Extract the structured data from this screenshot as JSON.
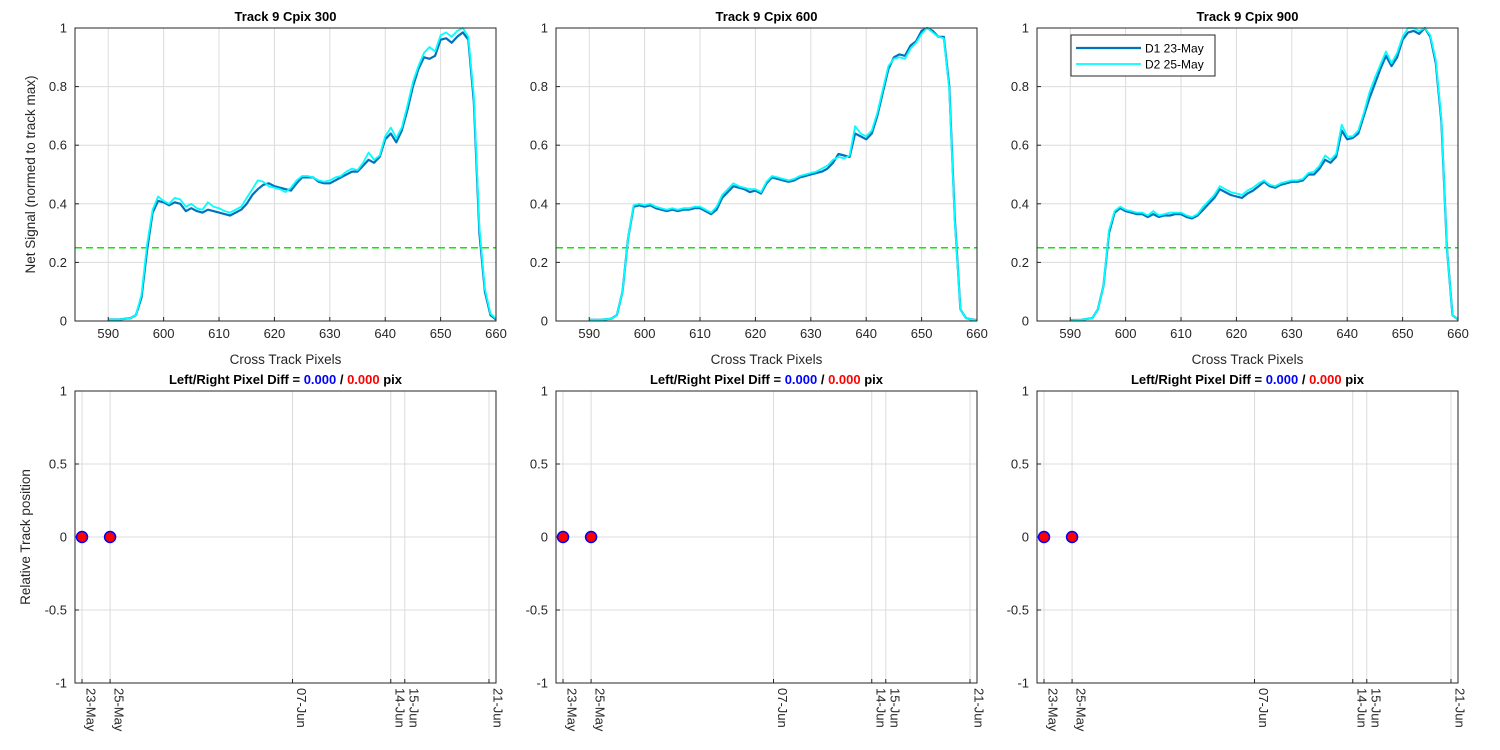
{
  "colors": {
    "d1": "#0072bd",
    "d2": "#00ffff",
    "threshold": "#00ee00",
    "left_value": "#0000ff",
    "right_value": "#ff0000",
    "marker_fill": "#ff0000",
    "marker_edge": "#0000ff"
  },
  "chart_data": [
    {
      "type": "line",
      "title": "Track 9  Cpix 300",
      "xlabel": "Cross Track Pixels",
      "ylabel": "Net Signal (normed to track max)",
      "xlim": [
        584,
        660
      ],
      "ylim": [
        0,
        1
      ],
      "xticks": [
        590,
        600,
        610,
        620,
        630,
        640,
        650,
        660
      ],
      "yticks": [
        0,
        0.2,
        0.4,
        0.6,
        0.8,
        1
      ],
      "ytick_labels": [
        "0",
        "0.2",
        "0.4",
        "0.6",
        "0.8",
        "1"
      ],
      "threshold": 0.25,
      "grid": true,
      "x": [
        590,
        592,
        594,
        595,
        596,
        597,
        598,
        599,
        600,
        601,
        602,
        603,
        604,
        605,
        606,
        607,
        608,
        609,
        610,
        611,
        612,
        613,
        614,
        615,
        616,
        617,
        618,
        619,
        620,
        621,
        622,
        623,
        624,
        625,
        626,
        627,
        628,
        629,
        630,
        631,
        632,
        633,
        634,
        635,
        636,
        637,
        638,
        639,
        640,
        641,
        642,
        643,
        644,
        645,
        646,
        647,
        648,
        649,
        650,
        651,
        652,
        653,
        654,
        655,
        656,
        657,
        658,
        659,
        660
      ],
      "series": [
        {
          "name": "D1 23-May",
          "values": [
            0.005,
            0.005,
            0.01,
            0.02,
            0.08,
            0.24,
            0.37,
            0.41,
            0.405,
            0.395,
            0.405,
            0.4,
            0.375,
            0.385,
            0.375,
            0.37,
            0.38,
            0.375,
            0.37,
            0.365,
            0.36,
            0.37,
            0.38,
            0.4,
            0.43,
            0.45,
            0.465,
            0.47,
            0.46,
            0.455,
            0.45,
            0.445,
            0.47,
            0.49,
            0.49,
            0.49,
            0.475,
            0.47,
            0.47,
            0.48,
            0.49,
            0.5,
            0.51,
            0.51,
            0.53,
            0.55,
            0.54,
            0.56,
            0.62,
            0.64,
            0.61,
            0.65,
            0.72,
            0.8,
            0.86,
            0.9,
            0.895,
            0.905,
            0.96,
            0.965,
            0.95,
            0.97,
            0.985,
            0.96,
            0.75,
            0.3,
            0.1,
            0.02,
            0.005
          ]
        },
        {
          "name": "D2 25-May",
          "values": [
            0.005,
            0.005,
            0.01,
            0.02,
            0.09,
            0.26,
            0.38,
            0.425,
            0.41,
            0.4,
            0.42,
            0.415,
            0.39,
            0.4,
            0.385,
            0.38,
            0.405,
            0.39,
            0.385,
            0.375,
            0.37,
            0.38,
            0.39,
            0.42,
            0.45,
            0.48,
            0.475,
            0.46,
            0.455,
            0.45,
            0.44,
            0.455,
            0.48,
            0.495,
            0.495,
            0.49,
            0.48,
            0.475,
            0.48,
            0.49,
            0.495,
            0.51,
            0.52,
            0.515,
            0.54,
            0.575,
            0.55,
            0.565,
            0.63,
            0.66,
            0.625,
            0.66,
            0.735,
            0.815,
            0.87,
            0.915,
            0.935,
            0.92,
            0.975,
            0.985,
            0.97,
            0.99,
            1.0,
            0.97,
            0.77,
            0.32,
            0.11,
            0.025,
            0.008
          ]
        }
      ]
    },
    {
      "type": "line",
      "title": "Track 9  Cpix 600",
      "xlabel": "Cross Track Pixels",
      "ylabel": "",
      "xlim": [
        584,
        660
      ],
      "ylim": [
        0,
        1
      ],
      "xticks": [
        590,
        600,
        610,
        620,
        630,
        640,
        650,
        660
      ],
      "yticks": [
        0,
        0.2,
        0.4,
        0.6,
        0.8,
        1
      ],
      "ytick_labels": [
        "0",
        "0.2",
        "0.4",
        "0.6",
        "0.8",
        "1"
      ],
      "threshold": 0.25,
      "grid": true,
      "x": [
        590,
        592,
        594,
        595,
        596,
        597,
        598,
        599,
        600,
        601,
        602,
        603,
        604,
        605,
        606,
        607,
        608,
        609,
        610,
        611,
        612,
        613,
        614,
        615,
        616,
        617,
        618,
        619,
        620,
        621,
        622,
        623,
        624,
        625,
        626,
        627,
        628,
        629,
        630,
        631,
        632,
        633,
        634,
        635,
        636,
        637,
        638,
        639,
        640,
        641,
        642,
        643,
        644,
        645,
        646,
        647,
        648,
        649,
        650,
        651,
        652,
        653,
        654,
        655,
        656,
        657,
        658,
        659,
        660
      ],
      "series": [
        {
          "name": "D1 23-May",
          "values": [
            0.004,
            0.004,
            0.008,
            0.02,
            0.1,
            0.28,
            0.39,
            0.395,
            0.39,
            0.395,
            0.385,
            0.38,
            0.375,
            0.38,
            0.375,
            0.38,
            0.38,
            0.385,
            0.385,
            0.375,
            0.365,
            0.38,
            0.42,
            0.44,
            0.46,
            0.455,
            0.45,
            0.44,
            0.445,
            0.435,
            0.47,
            0.49,
            0.485,
            0.48,
            0.475,
            0.48,
            0.49,
            0.495,
            0.5,
            0.505,
            0.51,
            0.52,
            0.54,
            0.57,
            0.565,
            0.56,
            0.64,
            0.63,
            0.62,
            0.64,
            0.7,
            0.78,
            0.86,
            0.9,
            0.91,
            0.905,
            0.94,
            0.955,
            0.99,
            1.0,
            0.99,
            0.97,
            0.97,
            0.8,
            0.35,
            0.04,
            0.01,
            0.005,
            0.003
          ]
        },
        {
          "name": "D2 25-May",
          "values": [
            0.004,
            0.004,
            0.008,
            0.02,
            0.1,
            0.28,
            0.395,
            0.4,
            0.395,
            0.4,
            0.39,
            0.385,
            0.38,
            0.385,
            0.38,
            0.385,
            0.385,
            0.39,
            0.39,
            0.38,
            0.37,
            0.39,
            0.43,
            0.45,
            0.47,
            0.46,
            0.455,
            0.45,
            0.45,
            0.44,
            0.475,
            0.495,
            0.49,
            0.485,
            0.48,
            0.485,
            0.495,
            0.5,
            0.505,
            0.51,
            0.52,
            0.53,
            0.55,
            0.56,
            0.555,
            0.565,
            0.665,
            0.64,
            0.63,
            0.65,
            0.71,
            0.79,
            0.87,
            0.895,
            0.9,
            0.895,
            0.93,
            0.95,
            0.98,
            1.0,
            0.985,
            0.97,
            0.965,
            0.79,
            0.34,
            0.04,
            0.01,
            0.005,
            0.003
          ]
        }
      ]
    },
    {
      "type": "line",
      "title": "Track 9  Cpix 900",
      "xlabel": "Cross Track Pixels",
      "ylabel": "",
      "xlim": [
        584,
        660
      ],
      "ylim": [
        0,
        1
      ],
      "xticks": [
        590,
        600,
        610,
        620,
        630,
        640,
        650,
        660
      ],
      "yticks": [
        0,
        0.2,
        0.4,
        0.6,
        0.8,
        1
      ],
      "ytick_labels": [
        "0",
        "0.2",
        "0.4",
        "0.6",
        "0.8",
        "1"
      ],
      "threshold": 0.25,
      "grid": true,
      "legend": {
        "location": "top-left"
      },
      "x": [
        590,
        592,
        594,
        595,
        596,
        597,
        598,
        599,
        600,
        601,
        602,
        603,
        604,
        605,
        606,
        607,
        608,
        609,
        610,
        611,
        612,
        613,
        614,
        615,
        616,
        617,
        618,
        619,
        620,
        621,
        622,
        623,
        624,
        625,
        626,
        627,
        628,
        629,
        630,
        631,
        632,
        633,
        634,
        635,
        636,
        637,
        638,
        639,
        640,
        641,
        642,
        643,
        644,
        645,
        646,
        647,
        648,
        649,
        650,
        651,
        652,
        653,
        654,
        655,
        656,
        657,
        658,
        659,
        660
      ],
      "series": [
        {
          "name": "D1 23-May",
          "values": [
            0.003,
            0.004,
            0.01,
            0.04,
            0.12,
            0.3,
            0.37,
            0.385,
            0.375,
            0.37,
            0.365,
            0.365,
            0.355,
            0.365,
            0.355,
            0.36,
            0.36,
            0.365,
            0.365,
            0.355,
            0.35,
            0.36,
            0.38,
            0.4,
            0.42,
            0.45,
            0.44,
            0.43,
            0.425,
            0.42,
            0.435,
            0.445,
            0.46,
            0.475,
            0.46,
            0.455,
            0.465,
            0.47,
            0.475,
            0.475,
            0.48,
            0.5,
            0.5,
            0.52,
            0.55,
            0.54,
            0.56,
            0.65,
            0.62,
            0.625,
            0.64,
            0.7,
            0.76,
            0.81,
            0.86,
            0.905,
            0.87,
            0.9,
            0.96,
            0.985,
            0.99,
            0.98,
            1.0,
            0.97,
            0.88,
            0.68,
            0.25,
            0.02,
            0.005
          ]
        },
        {
          "name": "D2 25-May",
          "values": [
            0.003,
            0.004,
            0.01,
            0.04,
            0.12,
            0.31,
            0.375,
            0.39,
            0.38,
            0.375,
            0.37,
            0.37,
            0.36,
            0.375,
            0.36,
            0.365,
            0.37,
            0.37,
            0.37,
            0.36,
            0.355,
            0.365,
            0.39,
            0.41,
            0.43,
            0.46,
            0.45,
            0.44,
            0.435,
            0.43,
            0.445,
            0.455,
            0.47,
            0.48,
            0.465,
            0.46,
            0.47,
            0.475,
            0.48,
            0.48,
            0.485,
            0.505,
            0.51,
            0.53,
            0.565,
            0.55,
            0.57,
            0.67,
            0.63,
            0.63,
            0.65,
            0.71,
            0.78,
            0.83,
            0.875,
            0.92,
            0.88,
            0.915,
            0.97,
            1.0,
            1.0,
            0.99,
            1.0,
            0.975,
            0.89,
            0.69,
            0.25,
            0.02,
            0.005
          ]
        }
      ]
    },
    {
      "type": "scatter",
      "title_prefix": "Left/Right Pixel Diff = ",
      "title_left": "0.000",
      "title_sep": " / ",
      "title_right": "0.000",
      "title_suffix": " pix",
      "ylabel": "Relative Track position",
      "xlim_days": [
        -0.5,
        29.5
      ],
      "ylim": [
        -1,
        1
      ],
      "yticks": [
        -1,
        -0.5,
        0,
        0.5,
        1
      ],
      "ytick_labels": [
        "-1",
        "-0.5",
        "0",
        "0.5",
        "1"
      ],
      "xtick_days": [
        0,
        2,
        15,
        22,
        23,
        29
      ],
      "xtick_labels": [
        "23-May",
        "25-May",
        "07-Jun",
        "14-Jun",
        "15-Jun",
        "21-Jun"
      ],
      "points_days": [
        0,
        2
      ],
      "left_values": [
        0,
        0
      ],
      "right_values": [
        0,
        0
      ],
      "grid": true
    },
    {
      "type": "scatter",
      "title_prefix": "Left/Right Pixel Diff = ",
      "title_left": "0.000",
      "title_sep": " / ",
      "title_right": "0.000",
      "title_suffix": " pix",
      "ylabel": "",
      "xlim_days": [
        -0.5,
        29.5
      ],
      "ylim": [
        -1,
        1
      ],
      "yticks": [
        -1,
        -0.5,
        0,
        0.5,
        1
      ],
      "ytick_labels": [
        "-1",
        "-0.5",
        "0",
        "0.5",
        "1"
      ],
      "xtick_days": [
        0,
        2,
        15,
        22,
        23,
        29
      ],
      "xtick_labels": [
        "23-May",
        "25-May",
        "07-Jun",
        "14-Jun",
        "15-Jun",
        "21-Jun"
      ],
      "points_days": [
        0,
        2
      ],
      "left_values": [
        0,
        0
      ],
      "right_values": [
        0,
        0
      ],
      "grid": true
    },
    {
      "type": "scatter",
      "title_prefix": "Left/Right Pixel Diff = ",
      "title_left": "0.000",
      "title_sep": " / ",
      "title_right": "0.000",
      "title_suffix": " pix",
      "ylabel": "",
      "xlim_days": [
        -0.5,
        29.5
      ],
      "ylim": [
        -1,
        1
      ],
      "yticks": [
        -1,
        -0.5,
        0,
        0.5,
        1
      ],
      "ytick_labels": [
        "-1",
        "-0.5",
        "0",
        "0.5",
        "1"
      ],
      "xtick_days": [
        0,
        2,
        15,
        22,
        23,
        29
      ],
      "xtick_labels": [
        "23-May",
        "25-May",
        "07-Jun",
        "14-Jun",
        "15-Jun",
        "21-Jun"
      ],
      "points_days": [
        0,
        2
      ],
      "left_values": [
        0,
        0
      ],
      "right_values": [
        0,
        0
      ],
      "grid": true
    }
  ]
}
